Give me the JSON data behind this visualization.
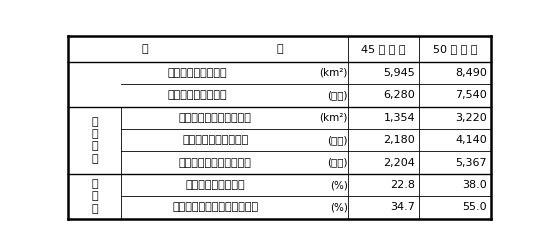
{
  "header": [
    "項　　　　　　　目",
    "45 年 度 末",
    "50 年 度 末"
  ],
  "rows": [
    {
      "group_label": "",
      "sub_label": "市　街　地　面　積",
      "unit": "(km²)",
      "val1": "5,945",
      "val2": "8,490",
      "group_span": 0
    },
    {
      "group_label": "",
      "sub_label": "市　街　地　人　口",
      "unit": "(万人)",
      "val1": "6,280",
      "val2": "7,540",
      "group_span": 0
    },
    {
      "group_label": "整備状況",
      "sub_label": "処　理　区　域　面　積",
      "unit": "(km²)",
      "val1": "1,354",
      "val2": "3,220",
      "group_span": 3
    },
    {
      "group_label": "",
      "sub_label": "処　　理　　人　　口",
      "unit": "(万人)",
      "val1": "2,180",
      "val2": "4,140",
      "group_span": 0
    },
    {
      "group_label": "",
      "sub_label": "処　理　能　力　人　口",
      "unit": "(万人)",
      "val1": "2,204",
      "val2": "5,367",
      "group_span": 0
    },
    {
      "group_label": "普及率",
      "sub_label": "処理区域面積普及率",
      "unit": "(%)",
      "val1": "22.8",
      "val2": "38.0",
      "group_span": 2
    },
    {
      "group_label": "",
      "sub_label": "処　理　人　口　普　及　率",
      "unit": "(%)",
      "val1": "34.7",
      "val2": "55.0",
      "group_span": 0
    }
  ],
  "bg_color": "#ffffff",
  "text_color": "#000000",
  "font_size": 8.0
}
